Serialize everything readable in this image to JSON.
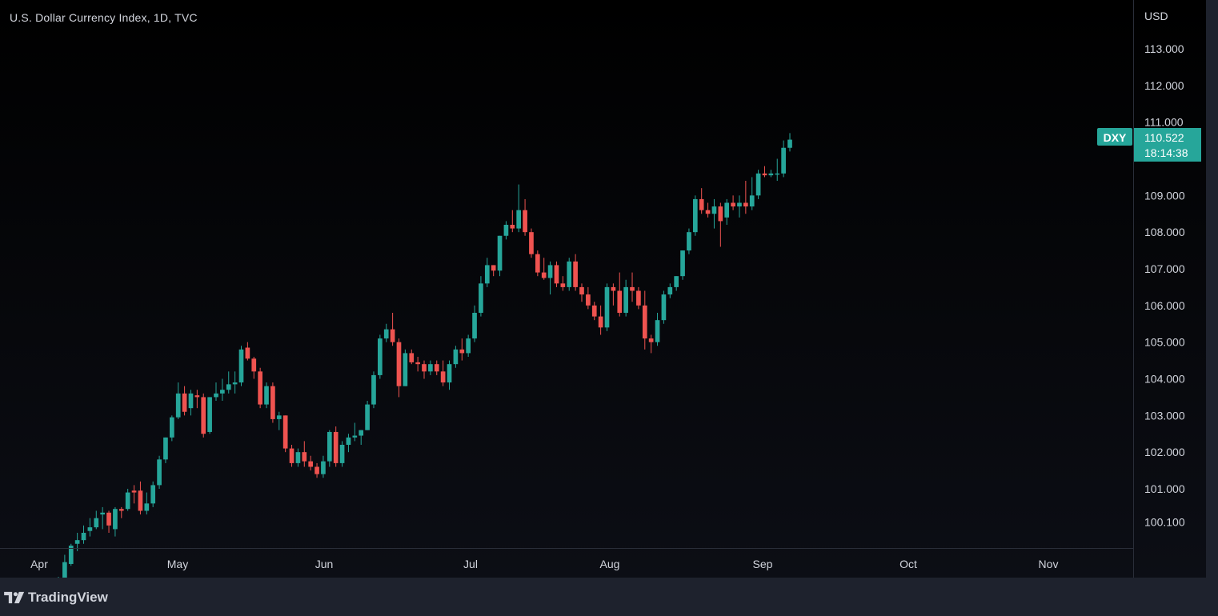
{
  "header": {
    "title": "U.S. Dollar Currency Index, 1D, TVC"
  },
  "footer": {
    "brand": "TradingView"
  },
  "price_badge": {
    "symbol": "DXY",
    "price": "110.522",
    "countdown": "18:14:38",
    "color": "#26a69a"
  },
  "colors": {
    "up": "#26a69a",
    "down": "#ef5350",
    "background": "#000000",
    "axis_text": "#d1d4dc"
  },
  "chart_data": {
    "type": "candlestick",
    "title": "U.S. Dollar Currency Index, 1D, TVC",
    "ylabel": "USD",
    "yticks": [
      "113.000",
      "112.000",
      "111.000",
      "109.000",
      "108.000",
      "107.000",
      "106.000",
      "105.000",
      "104.000",
      "103.000",
      "102.000",
      "101.000",
      "100.100"
    ],
    "xticks": [
      "Apr",
      "May",
      "Jun",
      "Jul",
      "Aug",
      "Sep",
      "Oct",
      "Nov"
    ],
    "last_price": 110.522,
    "candles": [
      {
        "date": "Apr 1",
        "o": 98.3,
        "h": 98.6,
        "l": 98.1,
        "c": 98.45
      },
      {
        "date": "Apr 4",
        "o": 98.5,
        "h": 99.2,
        "l": 98.4,
        "c": 99.0
      },
      {
        "date": "Apr 5",
        "o": 98.95,
        "h": 99.5,
        "l": 98.9,
        "c": 99.45
      },
      {
        "date": "Apr 6",
        "o": 99.5,
        "h": 99.8,
        "l": 99.3,
        "c": 99.6
      },
      {
        "date": "Apr 7",
        "o": 99.6,
        "h": 100.0,
        "l": 99.5,
        "c": 99.8
      },
      {
        "date": "Apr 8",
        "o": 99.85,
        "h": 100.2,
        "l": 99.7,
        "c": 99.95
      },
      {
        "date": "Apr 11",
        "o": 99.95,
        "h": 100.4,
        "l": 99.9,
        "c": 100.2
      },
      {
        "date": "Apr 12",
        "o": 100.3,
        "h": 100.5,
        "l": 99.9,
        "c": 100.35
      },
      {
        "date": "Apr 13",
        "o": 100.35,
        "h": 100.4,
        "l": 99.8,
        "c": 100.0
      },
      {
        "date": "Apr 14",
        "o": 99.9,
        "h": 100.5,
        "l": 99.7,
        "c": 100.45
      },
      {
        "date": "Apr 15",
        "o": 100.45,
        "h": 100.5,
        "l": 100.2,
        "c": 100.4
      },
      {
        "date": "Apr 18",
        "o": 100.45,
        "h": 101.0,
        "l": 100.4,
        "c": 100.9
      },
      {
        "date": "Apr 19",
        "o": 100.95,
        "h": 101.1,
        "l": 100.6,
        "c": 100.9
      },
      {
        "date": "Apr 20",
        "o": 100.95,
        "h": 101.2,
        "l": 100.3,
        "c": 100.4
      },
      {
        "date": "Apr 21",
        "o": 100.4,
        "h": 100.9,
        "l": 100.3,
        "c": 100.6
      },
      {
        "date": "Apr 22",
        "o": 100.6,
        "h": 101.2,
        "l": 100.5,
        "c": 101.1
      },
      {
        "date": "Apr 25",
        "o": 101.1,
        "h": 101.9,
        "l": 101.0,
        "c": 101.8
      },
      {
        "date": "Apr 26",
        "o": 101.8,
        "h": 102.4,
        "l": 101.7,
        "c": 102.4
      },
      {
        "date": "Apr 27",
        "o": 102.4,
        "h": 103.0,
        "l": 102.3,
        "c": 102.95
      },
      {
        "date": "Apr 28",
        "o": 102.95,
        "h": 103.9,
        "l": 102.9,
        "c": 103.6
      },
      {
        "date": "Apr 29",
        "o": 103.6,
        "h": 103.8,
        "l": 103.0,
        "c": 103.1
      },
      {
        "date": "May 2",
        "o": 103.2,
        "h": 103.7,
        "l": 103.0,
        "c": 103.6
      },
      {
        "date": "May 3",
        "o": 103.55,
        "h": 103.7,
        "l": 103.2,
        "c": 103.5
      },
      {
        "date": "May 4",
        "o": 103.5,
        "h": 103.6,
        "l": 102.4,
        "c": 102.5
      },
      {
        "date": "May 5",
        "o": 102.55,
        "h": 103.5,
        "l": 102.5,
        "c": 103.5
      },
      {
        "date": "May 6",
        "o": 103.5,
        "h": 103.9,
        "l": 103.4,
        "c": 103.6
      },
      {
        "date": "May 9",
        "o": 103.6,
        "h": 104.0,
        "l": 103.4,
        "c": 103.7
      },
      {
        "date": "May 10",
        "o": 103.7,
        "h": 104.2,
        "l": 103.6,
        "c": 103.85
      },
      {
        "date": "May 11",
        "o": 103.85,
        "h": 104.2,
        "l": 103.6,
        "c": 103.9
      },
      {
        "date": "May 12",
        "o": 103.9,
        "h": 104.9,
        "l": 103.8,
        "c": 104.8
      },
      {
        "date": "May 13",
        "o": 104.85,
        "h": 105.0,
        "l": 104.5,
        "c": 104.55
      },
      {
        "date": "May 16",
        "o": 104.55,
        "h": 104.6,
        "l": 104.0,
        "c": 104.2
      },
      {
        "date": "May 17",
        "o": 104.2,
        "h": 104.3,
        "l": 103.2,
        "c": 103.3
      },
      {
        "date": "May 18",
        "o": 103.3,
        "h": 103.9,
        "l": 103.2,
        "c": 103.8
      },
      {
        "date": "May 19",
        "o": 103.8,
        "h": 103.9,
        "l": 102.8,
        "c": 102.9
      },
      {
        "date": "May 20",
        "o": 102.9,
        "h": 103.1,
        "l": 102.6,
        "c": 103.0
      },
      {
        "date": "May 23",
        "o": 103.0,
        "h": 103.0,
        "l": 102.0,
        "c": 102.1
      },
      {
        "date": "May 24",
        "o": 102.1,
        "h": 102.2,
        "l": 101.6,
        "c": 101.7
      },
      {
        "date": "May 25",
        "o": 101.7,
        "h": 102.1,
        "l": 101.6,
        "c": 102.0
      },
      {
        "date": "May 26",
        "o": 102.0,
        "h": 102.3,
        "l": 101.6,
        "c": 101.75
      },
      {
        "date": "May 27",
        "o": 101.75,
        "h": 101.9,
        "l": 101.5,
        "c": 101.6
      },
      {
        "date": "May 30",
        "o": 101.6,
        "h": 101.7,
        "l": 101.3,
        "c": 101.4
      },
      {
        "date": "May 31",
        "o": 101.4,
        "h": 101.9,
        "l": 101.3,
        "c": 101.75
      },
      {
        "date": "Jun 1",
        "o": 101.75,
        "h": 102.6,
        "l": 101.6,
        "c": 102.55
      },
      {
        "date": "Jun 2",
        "o": 102.55,
        "h": 102.7,
        "l": 101.6,
        "c": 101.7
      },
      {
        "date": "Jun 3",
        "o": 101.7,
        "h": 102.3,
        "l": 101.6,
        "c": 102.2
      },
      {
        "date": "Jun 6",
        "o": 102.2,
        "h": 102.5,
        "l": 102.0,
        "c": 102.4
      },
      {
        "date": "Jun 7",
        "o": 102.4,
        "h": 102.8,
        "l": 102.3,
        "c": 102.45
      },
      {
        "date": "Jun 8",
        "o": 102.45,
        "h": 102.6,
        "l": 102.2,
        "c": 102.6
      },
      {
        "date": "Jun 9",
        "o": 102.6,
        "h": 103.4,
        "l": 102.6,
        "c": 103.3
      },
      {
        "date": "Jun 10",
        "o": 103.3,
        "h": 104.2,
        "l": 103.2,
        "c": 104.1
      },
      {
        "date": "Jun 13",
        "o": 104.1,
        "h": 105.2,
        "l": 104.0,
        "c": 105.1
      },
      {
        "date": "Jun 14",
        "o": 105.1,
        "h": 105.5,
        "l": 105.0,
        "c": 105.35
      },
      {
        "date": "Jun 15",
        "o": 105.35,
        "h": 105.8,
        "l": 104.9,
        "c": 105.0
      },
      {
        "date": "Jun 16",
        "o": 105.0,
        "h": 105.1,
        "l": 103.5,
        "c": 103.8
      },
      {
        "date": "Jun 17",
        "o": 103.8,
        "h": 104.8,
        "l": 103.8,
        "c": 104.7
      },
      {
        "date": "Jun 20",
        "o": 104.7,
        "h": 104.8,
        "l": 104.4,
        "c": 104.45
      },
      {
        "date": "Jun 21",
        "o": 104.45,
        "h": 104.6,
        "l": 104.2,
        "c": 104.4
      },
      {
        "date": "Jun 22",
        "o": 104.4,
        "h": 104.5,
        "l": 104.0,
        "c": 104.2
      },
      {
        "date": "Jun 23",
        "o": 104.2,
        "h": 104.5,
        "l": 104.1,
        "c": 104.4
      },
      {
        "date": "Jun 24",
        "o": 104.4,
        "h": 104.5,
        "l": 104.1,
        "c": 104.2
      },
      {
        "date": "Jun 27",
        "o": 104.2,
        "h": 104.5,
        "l": 103.8,
        "c": 103.9
      },
      {
        "date": "Jun 28",
        "o": 103.9,
        "h": 104.5,
        "l": 103.7,
        "c": 104.4
      },
      {
        "date": "Jun 29",
        "o": 104.4,
        "h": 104.9,
        "l": 104.3,
        "c": 104.8
      },
      {
        "date": "Jun 30",
        "o": 104.8,
        "h": 105.1,
        "l": 104.5,
        "c": 104.7
      },
      {
        "date": "Jul 1",
        "o": 104.7,
        "h": 105.2,
        "l": 104.6,
        "c": 105.1
      },
      {
        "date": "Jul 5",
        "o": 105.1,
        "h": 106.0,
        "l": 105.0,
        "c": 105.8
      },
      {
        "date": "Jul 6",
        "o": 105.8,
        "h": 106.8,
        "l": 105.7,
        "c": 106.6
      },
      {
        "date": "Jul 7",
        "o": 106.6,
        "h": 107.3,
        "l": 106.5,
        "c": 107.1
      },
      {
        "date": "Jul 8",
        "o": 107.1,
        "h": 107.1,
        "l": 106.8,
        "c": 106.95
      },
      {
        "date": "Jul 11",
        "o": 106.95,
        "h": 107.9,
        "l": 106.8,
        "c": 107.9
      },
      {
        "date": "Jul 12",
        "o": 107.9,
        "h": 108.3,
        "l": 107.8,
        "c": 108.2
      },
      {
        "date": "Jul 13",
        "o": 108.2,
        "h": 108.6,
        "l": 108.0,
        "c": 108.1
      },
      {
        "date": "Jul 14",
        "o": 108.1,
        "h": 109.3,
        "l": 108.0,
        "c": 108.6
      },
      {
        "date": "Jul 15",
        "o": 108.6,
        "h": 108.9,
        "l": 107.9,
        "c": 108.0
      },
      {
        "date": "Jul 18",
        "o": 108.0,
        "h": 108.1,
        "l": 107.3,
        "c": 107.4
      },
      {
        "date": "Jul 19",
        "o": 107.4,
        "h": 107.5,
        "l": 106.8,
        "c": 106.9
      },
      {
        "date": "Jul 20",
        "o": 106.9,
        "h": 107.3,
        "l": 106.7,
        "c": 106.75
      },
      {
        "date": "Jul 21",
        "o": 106.75,
        "h": 107.2,
        "l": 106.3,
        "c": 107.1
      },
      {
        "date": "Jul 22",
        "o": 107.1,
        "h": 107.2,
        "l": 106.5,
        "c": 106.6
      },
      {
        "date": "Jul 25",
        "o": 106.6,
        "h": 106.8,
        "l": 106.4,
        "c": 106.5
      },
      {
        "date": "Jul 26",
        "o": 106.5,
        "h": 107.3,
        "l": 106.4,
        "c": 107.2
      },
      {
        "date": "Jul 27",
        "o": 107.2,
        "h": 107.4,
        "l": 106.4,
        "c": 106.5
      },
      {
        "date": "Jul 28",
        "o": 106.5,
        "h": 106.6,
        "l": 106.1,
        "c": 106.3
      },
      {
        "date": "Jul 29",
        "o": 106.3,
        "h": 106.5,
        "l": 105.9,
        "c": 106.0
      },
      {
        "date": "Aug 1",
        "o": 106.0,
        "h": 106.1,
        "l": 105.6,
        "c": 105.7
      },
      {
        "date": "Aug 2",
        "o": 105.7,
        "h": 106.0,
        "l": 105.2,
        "c": 105.4
      },
      {
        "date": "Aug 3",
        "o": 105.4,
        "h": 106.6,
        "l": 105.3,
        "c": 106.5
      },
      {
        "date": "Aug 4",
        "o": 106.5,
        "h": 106.6,
        "l": 106.0,
        "c": 106.4
      },
      {
        "date": "Aug 5",
        "o": 106.4,
        "h": 106.9,
        "l": 105.7,
        "c": 105.8
      },
      {
        "date": "Aug 8",
        "o": 105.8,
        "h": 106.7,
        "l": 105.7,
        "c": 106.5
      },
      {
        "date": "Aug 9",
        "o": 106.5,
        "h": 106.9,
        "l": 106.1,
        "c": 106.4
      },
      {
        "date": "Aug 10",
        "o": 106.4,
        "h": 106.5,
        "l": 105.9,
        "c": 106.0
      },
      {
        "date": "Aug 11",
        "o": 106.0,
        "h": 106.4,
        "l": 104.8,
        "c": 105.1
      },
      {
        "date": "Aug 12",
        "o": 105.1,
        "h": 105.2,
        "l": 104.7,
        "c": 105.0
      },
      {
        "date": "Aug 15",
        "o": 105.0,
        "h": 105.8,
        "l": 104.9,
        "c": 105.6
      },
      {
        "date": "Aug 16",
        "o": 105.6,
        "h": 106.4,
        "l": 105.5,
        "c": 106.3
      },
      {
        "date": "Aug 17",
        "o": 106.3,
        "h": 106.6,
        "l": 106.2,
        "c": 106.5
      },
      {
        "date": "Aug 18",
        "o": 106.5,
        "h": 106.8,
        "l": 106.4,
        "c": 106.8
      },
      {
        "date": "Aug 19",
        "o": 106.8,
        "h": 107.5,
        "l": 106.7,
        "c": 107.5
      },
      {
        "date": "Aug 22",
        "o": 107.5,
        "h": 108.1,
        "l": 107.4,
        "c": 108.0
      },
      {
        "date": "Aug 23",
        "o": 108.0,
        "h": 109.0,
        "l": 107.9,
        "c": 108.9
      },
      {
        "date": "Aug 24",
        "o": 108.9,
        "h": 109.2,
        "l": 108.5,
        "c": 108.6
      },
      {
        "date": "Aug 25",
        "o": 108.6,
        "h": 108.8,
        "l": 108.4,
        "c": 108.5
      },
      {
        "date": "Aug 26",
        "o": 108.5,
        "h": 108.9,
        "l": 108.1,
        "c": 108.7
      },
      {
        "date": "Aug 29",
        "o": 108.7,
        "h": 108.8,
        "l": 107.6,
        "c": 108.3
      },
      {
        "date": "Aug 30",
        "o": 108.4,
        "h": 108.9,
        "l": 108.2,
        "c": 108.8
      },
      {
        "date": "Aug 31",
        "o": 108.8,
        "h": 109.0,
        "l": 108.6,
        "c": 108.7
      },
      {
        "date": "Sep 1",
        "o": 108.7,
        "h": 109.0,
        "l": 108.4,
        "c": 108.8
      },
      {
        "date": "Sep 2",
        "o": 108.8,
        "h": 109.4,
        "l": 108.5,
        "c": 108.7
      },
      {
        "date": "Sep 5",
        "o": 108.7,
        "h": 109.5,
        "l": 108.6,
        "c": 109.0
      },
      {
        "date": "Sep 6",
        "o": 109.0,
        "h": 109.7,
        "l": 108.9,
        "c": 109.6
      },
      {
        "date": "Sep 7",
        "o": 109.6,
        "h": 109.8,
        "l": 109.5,
        "c": 109.55
      },
      {
        "date": "Sep 8",
        "o": 109.55,
        "h": 109.7,
        "l": 109.5,
        "c": 109.6
      },
      {
        "date": "Sep 9",
        "o": 109.6,
        "h": 110.0,
        "l": 109.4,
        "c": 109.6
      },
      {
        "date": "Sep 12",
        "o": 109.6,
        "h": 110.5,
        "l": 109.5,
        "c": 110.3
      },
      {
        "date": "Sep 13",
        "o": 110.3,
        "h": 110.7,
        "l": 110.2,
        "c": 110.522
      }
    ]
  }
}
